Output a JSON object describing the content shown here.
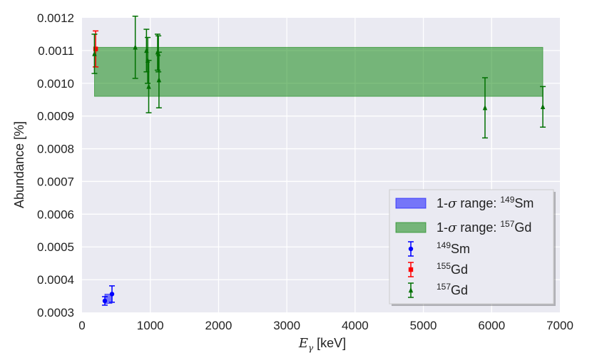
{
  "chart_data": {
    "type": "scatter",
    "xlabel_main": "E",
    "xlabel_sub": "γ",
    "xlabel_unit": " [keV]",
    "ylabel": "Abundance [%]",
    "xlim": [
      0,
      7000
    ],
    "ylim": [
      0.0003,
      0.0012
    ],
    "x_ticks": [
      "0",
      "1000",
      "2000",
      "3000",
      "4000",
      "5000",
      "6000",
      "7000"
    ],
    "y_ticks": [
      "0.0003",
      "0.0004",
      "0.0005",
      "0.0006",
      "0.0007",
      "0.0008",
      "0.0009",
      "0.0010",
      "0.0011",
      "0.0012"
    ],
    "grid": true,
    "legend_position": "lower-right",
    "bands": [
      {
        "label_prefix": "1-",
        "label_sigma": "σ",
        "label_mid": " range: ",
        "label_mass": "149",
        "label_elem": "Sm",
        "color": "#0000ff",
        "x_range": [
          334,
          439
        ],
        "y_range": [
          0.000327,
          0.000356
        ]
      },
      {
        "label_prefix": "1-",
        "label_sigma": "σ",
        "label_mid": " range: ",
        "label_mass": "157",
        "label_elem": "Gd",
        "color": "#008000",
        "x_range": [
          182,
          6750
        ],
        "y_range": [
          0.00096,
          0.00111
        ]
      }
    ],
    "series": [
      {
        "mass": "149",
        "elem": "Sm",
        "color": "#0000ff",
        "marker": "circle",
        "points": [
          {
            "x": 334,
            "y": 0.000335,
            "err": 1.3e-05
          },
          {
            "x": 439,
            "y": 0.000356,
            "err": 2.5e-05
          }
        ]
      },
      {
        "mass": "155",
        "elem": "Gd",
        "color": "#ff0000",
        "marker": "square",
        "points": [
          {
            "x": 199,
            "y": 0.001105,
            "err": 5.5e-05
          }
        ]
      },
      {
        "mass": "157",
        "elem": "Gd",
        "color": "#007000",
        "marker": "triangle",
        "points": [
          {
            "x": 182,
            "y": 0.00109,
            "err": 6e-05
          },
          {
            "x": 780,
            "y": 0.00111,
            "err": 9.5e-05
          },
          {
            "x": 944,
            "y": 0.0011,
            "err": 6.5e-05
          },
          {
            "x": 962,
            "y": 0.00107,
            "err": 7e-05
          },
          {
            "x": 977,
            "y": 0.00099,
            "err": 8e-05
          },
          {
            "x": 1107,
            "y": 0.001095,
            "err": 5.5e-05
          },
          {
            "x": 1119,
            "y": 0.00109,
            "err": 5.5e-05
          },
          {
            "x": 1127,
            "y": 0.00101,
            "err": 8.5e-05
          },
          {
            "x": 5903,
            "y": 0.000925,
            "err": 9.2e-05
          },
          {
            "x": 6750,
            "y": 0.000928,
            "err": 6.2e-05
          }
        ]
      }
    ]
  }
}
